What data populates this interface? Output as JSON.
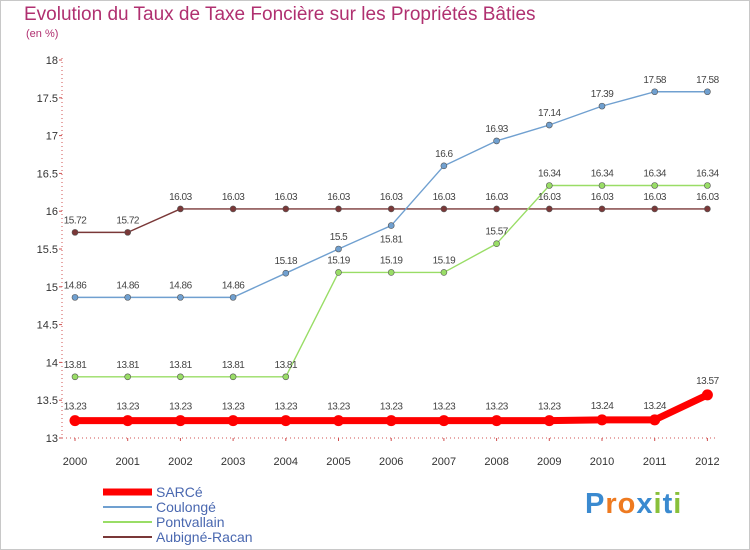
{
  "chart_data": {
    "type": "line",
    "title": "Evolution du Taux de Taxe Foncière sur les Propriétés Bâties",
    "subtitle": "(en %)",
    "x": [
      "2000",
      "2001",
      "2002",
      "2003",
      "2004",
      "2005",
      "2006",
      "2007",
      "2008",
      "2009",
      "2010",
      "2011",
      "2012"
    ],
    "ylim": [
      13,
      18
    ],
    "yticks": [
      "13",
      "13.5",
      "14",
      "14.5",
      "15",
      "15.5",
      "16",
      "16.5",
      "17",
      "17.5",
      "18"
    ],
    "series": [
      {
        "name": "SARCé",
        "color": "#ff0000",
        "values": [
          13.23,
          13.23,
          13.23,
          13.23,
          13.23,
          13.23,
          13.23,
          13.23,
          13.23,
          13.23,
          13.24,
          13.24,
          13.57
        ],
        "labels": [
          "13.23",
          "13.23",
          "13.23",
          "13.23",
          "13.23",
          "13.23",
          "13.23",
          "13.23",
          "13.23",
          "13.23",
          "13.24",
          "13.24",
          "13.57"
        ]
      },
      {
        "name": "Coulongé",
        "color": "#70a0d0",
        "values": [
          14.86,
          14.86,
          14.86,
          14.86,
          15.18,
          15.5,
          15.81,
          16.6,
          16.93,
          17.14,
          17.39,
          17.58,
          17.58
        ],
        "labels": [
          "14.86",
          "14.86",
          "14.86",
          "14.86",
          "15.18",
          "15.5",
          "15.81",
          "16.6",
          "16.93",
          "17.14",
          "17.39",
          "17.58",
          "17.58"
        ]
      },
      {
        "name": "Pontvallain",
        "color": "#99dd66",
        "values": [
          13.81,
          13.81,
          13.81,
          13.81,
          13.81,
          15.19,
          15.19,
          15.19,
          15.57,
          16.34,
          16.34,
          16.34,
          16.34
        ],
        "labels": [
          "13.81",
          "13.81",
          "13.81",
          "13.81",
          "13.81",
          "15.19",
          "15.19",
          "15.19",
          "15.57",
          "16.34",
          "16.34",
          "16.34",
          "16.34"
        ]
      },
      {
        "name": "Aubigné-Racan",
        "color": "#7a3838",
        "values": [
          15.72,
          15.72,
          16.03,
          16.03,
          16.03,
          16.03,
          16.03,
          16.03,
          16.03,
          16.03,
          16.03,
          16.03,
          16.03
        ],
        "labels": [
          "15.72",
          "15.72",
          "16.03",
          "16.03",
          "16.03",
          "16.03",
          "16.03",
          "16.03",
          "16.03",
          "16.03",
          "16.03",
          "16.03",
          "16.03"
        ]
      }
    ]
  },
  "logo": {
    "letters": [
      "P",
      "r",
      "o",
      "x",
      "i",
      "t",
      "i"
    ],
    "colors": [
      "#3a8ad0",
      "#ee7a20",
      "#ee7a20",
      "#3a8ad0",
      "#88c03a",
      "#3a8ad0",
      "#88c03a"
    ]
  }
}
